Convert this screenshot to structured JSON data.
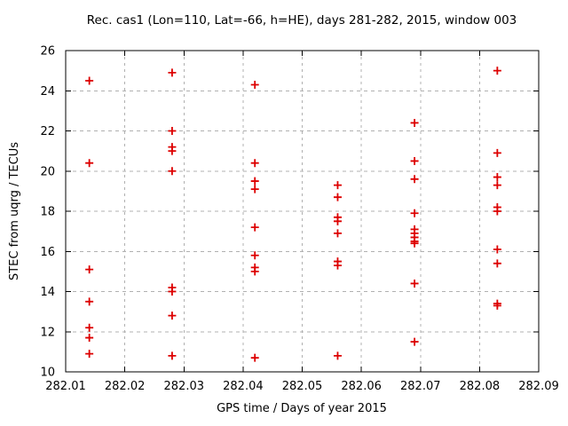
{
  "chart_data": {
    "type": "scatter",
    "title": "Rec. cas1 (Lon=110, Lat=-66, h=HE), days 281-282, 2015, window 003",
    "xlabel": "GPS time / Days of year 2015",
    "ylabel": "STEC from uqrg / TECUs",
    "xlim": [
      282.01,
      282.09
    ],
    "ylim": [
      10,
      26
    ],
    "xtick_step": 0.01,
    "ytick_step": 2,
    "xtick_labels": [
      "282.01",
      "282.02",
      "282.03",
      "282.04",
      "282.05",
      "282.06",
      "282.07",
      "282.08",
      "282.09"
    ],
    "ytick_labels": [
      "10",
      "12",
      "14",
      "16",
      "18",
      "20",
      "22",
      "24",
      "26"
    ],
    "grid": true,
    "legend": "none",
    "marker": "plus",
    "marker_color": "#dd0000",
    "grid_color": "#b0b0b0",
    "frame_color": "#000000",
    "series": [
      {
        "name": "STEC",
        "points": [
          [
            282.014,
            24.5
          ],
          [
            282.014,
            20.4
          ],
          [
            282.014,
            15.1
          ],
          [
            282.014,
            13.5
          ],
          [
            282.014,
            12.2
          ],
          [
            282.014,
            11.7
          ],
          [
            282.014,
            10.9
          ],
          [
            282.028,
            24.9
          ],
          [
            282.028,
            22.0
          ],
          [
            282.028,
            21.2
          ],
          [
            282.028,
            21.0
          ],
          [
            282.028,
            20.0
          ],
          [
            282.028,
            14.2
          ],
          [
            282.028,
            14.0
          ],
          [
            282.028,
            12.8
          ],
          [
            282.028,
            10.8
          ],
          [
            282.042,
            24.3
          ],
          [
            282.042,
            20.4
          ],
          [
            282.042,
            19.5
          ],
          [
            282.042,
            19.1
          ],
          [
            282.042,
            17.2
          ],
          [
            282.042,
            15.8
          ],
          [
            282.042,
            15.2
          ],
          [
            282.042,
            15.0
          ],
          [
            282.042,
            10.7
          ],
          [
            282.056,
            19.3
          ],
          [
            282.056,
            18.7
          ],
          [
            282.056,
            17.7
          ],
          [
            282.056,
            17.5
          ],
          [
            282.056,
            16.9
          ],
          [
            282.056,
            15.5
          ],
          [
            282.056,
            15.3
          ],
          [
            282.056,
            10.8
          ],
          [
            282.069,
            22.4
          ],
          [
            282.069,
            20.5
          ],
          [
            282.069,
            19.6
          ],
          [
            282.069,
            17.9
          ],
          [
            282.069,
            17.1
          ],
          [
            282.069,
            16.9
          ],
          [
            282.069,
            16.7
          ],
          [
            282.069,
            16.5
          ],
          [
            282.069,
            16.4
          ],
          [
            282.069,
            14.4
          ],
          [
            282.069,
            11.5
          ],
          [
            282.083,
            25.0
          ],
          [
            282.083,
            20.9
          ],
          [
            282.083,
            19.7
          ],
          [
            282.083,
            19.3
          ],
          [
            282.083,
            18.2
          ],
          [
            282.083,
            18.0
          ],
          [
            282.083,
            16.1
          ],
          [
            282.083,
            15.4
          ],
          [
            282.083,
            13.4
          ],
          [
            282.083,
            13.3
          ]
        ]
      }
    ]
  }
}
